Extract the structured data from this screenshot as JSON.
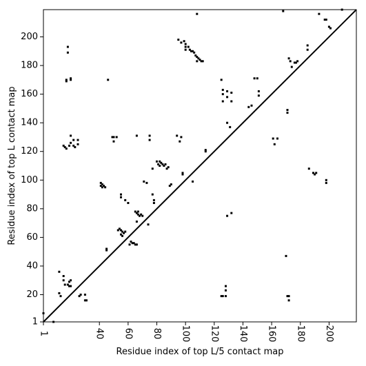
{
  "chart_data": {
    "type": "scatter",
    "title": "",
    "xlabel": "Residue index of top L/5 contact map",
    "ylabel": "Residue index of top L contact map",
    "xlim": [
      1,
      219
    ],
    "ylim": [
      1,
      219
    ],
    "x_ticks": [
      1,
      40,
      60,
      80,
      100,
      120,
      140,
      160,
      180,
      200
    ],
    "y_ticks": [
      1,
      20,
      40,
      60,
      80,
      100,
      120,
      140,
      160,
      180,
      200
    ],
    "x_tick_labels": [
      "1",
      "40",
      "60",
      "80",
      "100",
      "120",
      "140",
      "160",
      "180",
      "200"
    ],
    "y_tick_labels": [
      "1",
      "20",
      "40",
      "60",
      "80",
      "100",
      "120",
      "140",
      "160",
      "180",
      "200"
    ],
    "grid": false,
    "legend": "none",
    "diagonal": true,
    "marker_color": "#000000",
    "series": [
      {
        "points": [
          [
            1,
            7
          ],
          [
            8,
            1
          ],
          [
            12,
            36
          ],
          [
            12,
            21
          ],
          [
            13,
            19
          ],
          [
            15,
            33
          ],
          [
            15,
            30
          ],
          [
            16,
            27
          ],
          [
            18,
            27
          ],
          [
            19,
            26
          ],
          [
            19,
            29
          ],
          [
            20,
            30
          ],
          [
            20,
            26
          ],
          [
            26,
            19
          ],
          [
            27,
            20
          ],
          [
            30,
            20
          ],
          [
            30,
            16
          ],
          [
            31,
            16
          ],
          [
            41,
            98
          ],
          [
            42,
            97
          ],
          [
            43,
            96
          ],
          [
            44,
            95
          ],
          [
            41,
            96
          ],
          [
            42,
            95
          ],
          [
            45,
            52
          ],
          [
            45,
            51
          ],
          [
            54,
            66
          ],
          [
            55,
            65
          ],
          [
            56,
            64
          ],
          [
            57,
            63
          ],
          [
            55,
            62
          ],
          [
            56,
            61
          ],
          [
            58,
            64
          ],
          [
            53,
            65
          ],
          [
            58,
            86
          ],
          [
            60,
            84
          ],
          [
            62,
            57
          ],
          [
            63,
            56
          ],
          [
            64,
            56
          ],
          [
            65,
            55
          ],
          [
            66,
            55
          ],
          [
            61,
            55
          ],
          [
            65,
            78
          ],
          [
            66,
            77
          ],
          [
            67,
            78
          ],
          [
            67,
            76
          ],
          [
            68,
            75
          ],
          [
            69,
            76
          ],
          [
            70,
            75
          ],
          [
            66,
            71
          ],
          [
            74,
            69
          ],
          [
            17,
            170
          ],
          [
            17,
            169
          ],
          [
            20,
            171
          ],
          [
            20,
            170
          ],
          [
            18,
            193
          ],
          [
            18,
            189
          ],
          [
            15,
            124
          ],
          [
            16,
            123
          ],
          [
            17,
            122
          ],
          [
            19,
            124
          ],
          [
            20,
            126
          ],
          [
            20,
            131
          ],
          [
            22,
            128
          ],
          [
            22,
            124
          ],
          [
            23,
            123
          ],
          [
            25,
            128
          ],
          [
            25,
            125
          ],
          [
            46,
            170
          ],
          [
            49,
            130
          ],
          [
            50,
            130
          ],
          [
            50,
            127
          ],
          [
            52,
            130
          ],
          [
            55,
            90
          ],
          [
            55,
            88
          ],
          [
            66,
            131
          ],
          [
            71,
            99
          ],
          [
            73,
            98
          ],
          [
            75,
            131
          ],
          [
            75,
            128
          ],
          [
            77,
            108
          ],
          [
            77,
            90
          ],
          [
            78,
            86
          ],
          [
            78,
            84
          ],
          [
            80,
            113
          ],
          [
            81,
            111
          ],
          [
            82,
            113
          ],
          [
            82,
            110
          ],
          [
            83,
            112
          ],
          [
            84,
            111
          ],
          [
            85,
            110
          ],
          [
            86,
            111
          ],
          [
            87,
            108
          ],
          [
            88,
            109
          ],
          [
            89,
            96
          ],
          [
            90,
            97
          ],
          [
            94,
            131
          ],
          [
            96,
            127
          ],
          [
            97,
            130
          ],
          [
            98,
            105
          ],
          [
            98,
            104
          ],
          [
            95,
            198
          ],
          [
            97,
            196
          ],
          [
            99,
            197
          ],
          [
            100,
            195
          ],
          [
            100,
            193
          ],
          [
            100,
            191
          ],
          [
            102,
            193
          ],
          [
            103,
            191
          ],
          [
            104,
            190
          ],
          [
            105,
            190
          ],
          [
            106,
            189
          ],
          [
            107,
            187
          ],
          [
            108,
            186
          ],
          [
            109,
            185
          ],
          [
            110,
            184
          ],
          [
            111,
            183
          ],
          [
            112,
            183
          ],
          [
            108,
            183
          ],
          [
            105,
            99
          ],
          [
            108,
            216
          ],
          [
            114,
            121
          ],
          [
            114,
            120
          ],
          [
            125,
            170
          ],
          [
            126,
            163
          ],
          [
            126,
            155
          ],
          [
            126,
            160
          ],
          [
            129,
            162
          ],
          [
            129,
            158
          ],
          [
            129,
            140
          ],
          [
            131,
            137
          ],
          [
            132,
            161
          ],
          [
            132,
            155
          ],
          [
            125,
            19
          ],
          [
            126,
            19
          ],
          [
            128,
            26
          ],
          [
            128,
            23
          ],
          [
            128,
            19
          ],
          [
            129,
            75
          ],
          [
            132,
            77
          ],
          [
            144,
            151
          ],
          [
            146,
            152
          ],
          [
            148,
            171
          ],
          [
            150,
            171
          ],
          [
            151,
            162
          ],
          [
            151,
            159
          ],
          [
            161,
            129
          ],
          [
            162,
            125
          ],
          [
            164,
            129
          ],
          [
            168,
            218
          ],
          [
            171,
            149
          ],
          [
            171,
            147
          ],
          [
            171,
            19
          ],
          [
            172,
            19
          ],
          [
            172,
            16
          ],
          [
            170,
            47
          ],
          [
            172,
            185
          ],
          [
            173,
            183
          ],
          [
            174,
            179
          ],
          [
            176,
            182
          ],
          [
            177,
            182
          ],
          [
            178,
            183
          ],
          [
            185,
            194
          ],
          [
            185,
            191
          ],
          [
            186,
            108
          ],
          [
            189,
            105
          ],
          [
            190,
            104
          ],
          [
            191,
            105
          ],
          [
            193,
            216
          ],
          [
            197,
            212
          ],
          [
            198,
            212
          ],
          [
            198,
            98
          ],
          [
            198,
            100
          ],
          [
            200,
            207
          ],
          [
            201,
            206
          ],
          [
            209,
            219
          ]
        ]
      }
    ]
  }
}
